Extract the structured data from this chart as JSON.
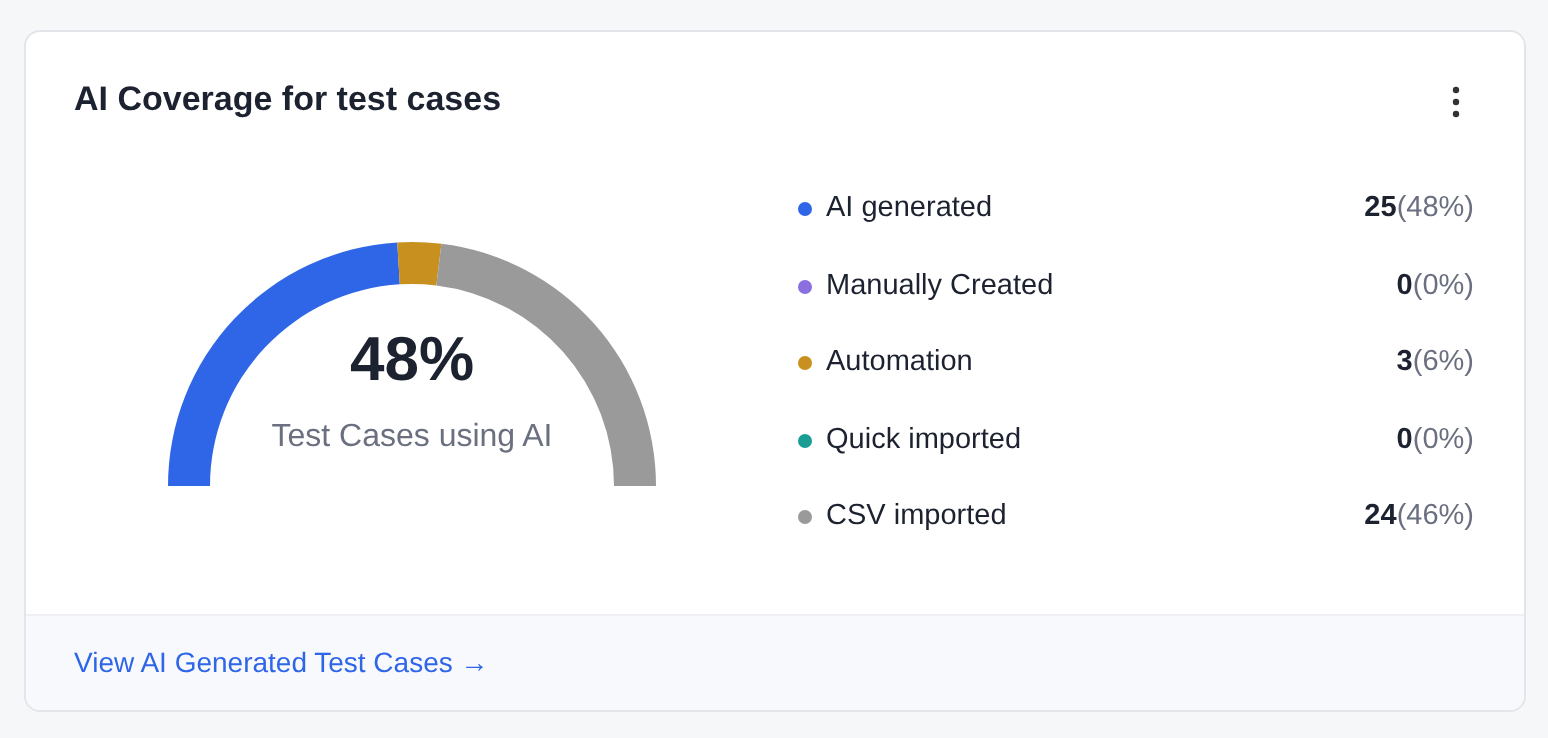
{
  "chart_data": {
    "type": "donut",
    "title": "AI Coverage for test cases",
    "categories": [
      "AI generated",
      "Manually Created",
      "Automation",
      "Quick imported",
      "CSV imported"
    ],
    "values": [
      25,
      0,
      3,
      0,
      24
    ],
    "colors": [
      "#2f66e8",
      "#8b6fe0",
      "#c8901f",
      "#1a9e94",
      "#9a9a9a"
    ],
    "value_labels": [
      "25(48%)",
      "0(0%)",
      "3(6%)",
      "0(0%)",
      "24(46%)"
    ],
    "legend": "right",
    "annotations": [
      "48%",
      "Test Cases using AI",
      "View AI Generated Test Cases →"
    ]
  }
}
